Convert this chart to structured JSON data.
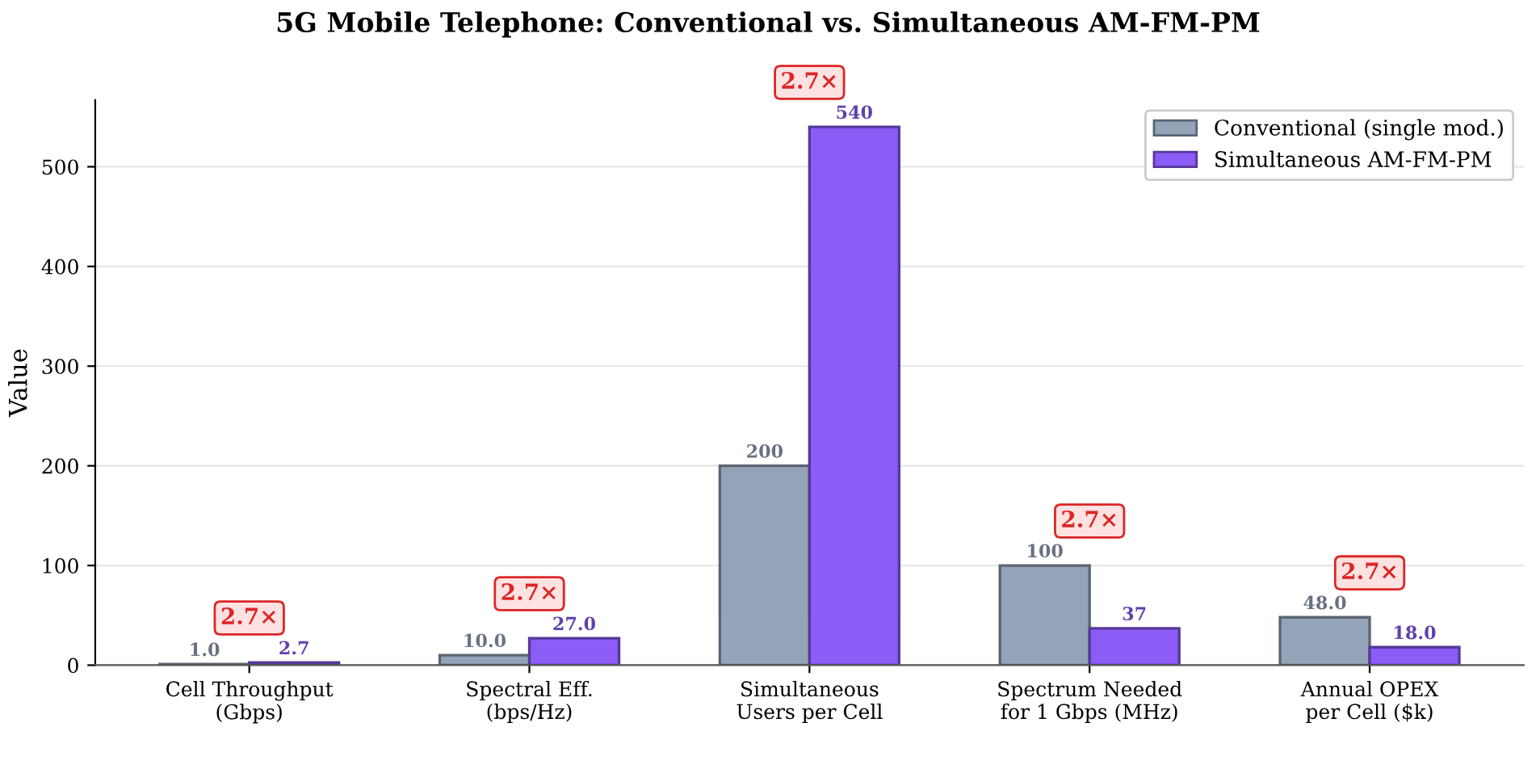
{
  "chart_data": {
    "type": "bar",
    "title": "5G Mobile Telephone: Conventional vs. Simultaneous AM-FM-PM",
    "ylabel": "Value",
    "categories": [
      "Cell Throughput\n(Gbps)",
      "Spectral Eff.\n(bps/Hz)",
      "Simultaneous\nUsers per Cell",
      "Spectrum Needed\nfor 1 Gbps (MHz)",
      "Annual OPEX\nper Cell ($k)"
    ],
    "series": [
      {
        "name": "Conventional (single mod.)",
        "color": "#94a3b8",
        "values": [
          1.0,
          10.0,
          200,
          100,
          48.0
        ],
        "value_labels": [
          "1.0",
          "10.0",
          "200",
          "100",
          "48.0"
        ]
      },
      {
        "name": "Simultaneous AM-FM-PM",
        "color": "#8b5cf6",
        "values": [
          2.7,
          27.0,
          540,
          37,
          18.0
        ],
        "value_labels": [
          "2.7",
          "27.0",
          "540",
          "37",
          "18.0"
        ]
      }
    ],
    "annotations": [
      {
        "text": "2.7×",
        "x": "Cell Throughput\n(Gbps)",
        "y": 2.7
      },
      {
        "text": "2.7×",
        "x": "Spectral Eff.\n(bps/Hz)",
        "y": 27.0
      },
      {
        "text": "2.7×",
        "x": "Simultaneous\nUsers per Cell",
        "y": 540
      },
      {
        "text": "2.7×",
        "x": "Spectrum Needed\nfor 1 Gbps (MHz)",
        "y": 100
      },
      {
        "text": "2.7×",
        "x": "Annual OPEX\nper Cell ($k)",
        "y": 48.0
      }
    ],
    "ylim": [
      0,
      567
    ],
    "yticks": [
      0,
      100,
      200,
      300,
      400,
      500
    ],
    "grid": "y",
    "legend": "top right"
  }
}
